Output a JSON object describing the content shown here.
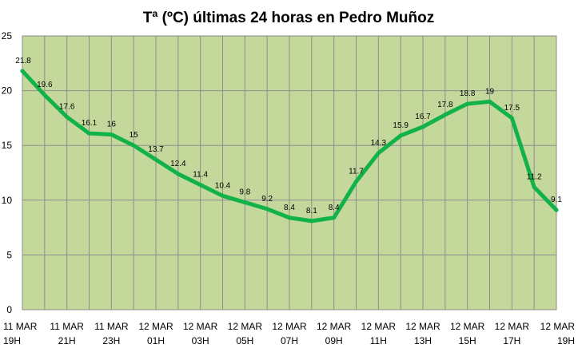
{
  "chart_data": {
    "type": "line",
    "title": "Tª (ºC) últimas 24 horas en Pedro Muñoz",
    "xlabel": "",
    "ylabel": "",
    "ylim": [
      0,
      25
    ],
    "yticks": [
      "0",
      "5",
      "10",
      "15",
      "20",
      "25"
    ],
    "grid": true,
    "legend": "none",
    "plot_background": "#c4d89b",
    "grid_color": "#8e8e8e",
    "line_color": "#12b24a",
    "categories": [
      [
        "11 MAR",
        "19H"
      ],
      [
        "",
        ""
      ],
      [
        "11 MAR",
        "21H"
      ],
      [
        "",
        ""
      ],
      [
        "11 MAR",
        "23H"
      ],
      [
        "",
        ""
      ],
      [
        "12 MAR",
        "01H"
      ],
      [
        "",
        ""
      ],
      [
        "12 MAR",
        "03H"
      ],
      [
        "",
        ""
      ],
      [
        "12 MAR",
        "05H"
      ],
      [
        "",
        ""
      ],
      [
        "12 MAR",
        "07H"
      ],
      [
        "",
        ""
      ],
      [
        "12 MAR",
        "09H"
      ],
      [
        "",
        ""
      ],
      [
        "12 MAR",
        "11H"
      ],
      [
        "",
        ""
      ],
      [
        "12 MAR",
        "13H"
      ],
      [
        "",
        ""
      ],
      [
        "12 MAR",
        "15H"
      ],
      [
        "",
        ""
      ],
      [
        "12 MAR",
        "17H"
      ],
      [
        "",
        ""
      ],
      [
        "12 MAR",
        "19H"
      ]
    ],
    "values": [
      21.8,
      19.6,
      17.6,
      16.1,
      16,
      15,
      13.7,
      12.4,
      11.4,
      10.4,
      9.8,
      9.2,
      8.4,
      8.1,
      8.4,
      11.7,
      14.3,
      15.9,
      16.7,
      17.8,
      18.8,
      19,
      17.5,
      11.2,
      9.1
    ],
    "data_labels": [
      "21.8",
      "19.6",
      "17.6",
      "16.1",
      "16",
      "15",
      "13.7",
      "12.4",
      "11.4",
      "10.4",
      "9.8",
      "9.2",
      "8.4",
      "8.1",
      "8.4",
      "11.7",
      "14.3",
      "15.9",
      "16.7",
      "17.8",
      "18.8",
      "19",
      "17.5",
      "11.2",
      "9.1"
    ]
  }
}
